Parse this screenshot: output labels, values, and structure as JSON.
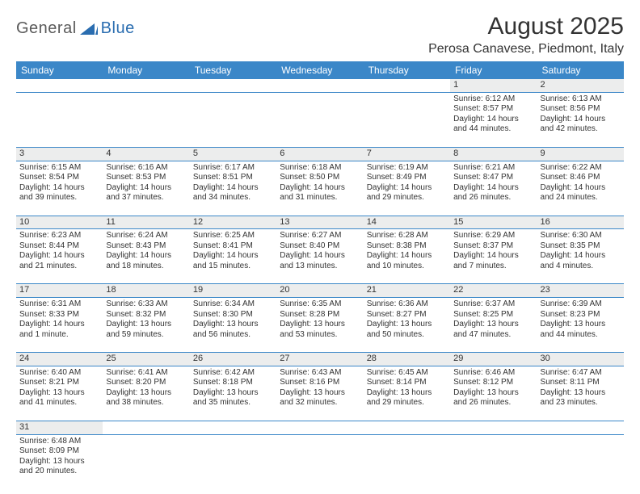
{
  "logo": {
    "general": "General",
    "blue": "Blue"
  },
  "title": "August 2025",
  "location": "Perosa Canavese, Piedmont, Italy",
  "colors": {
    "header_bg": "#3b87c8",
    "header_text": "#ffffff",
    "daynum_bg": "#eceded",
    "border": "#3b87c8",
    "text": "#333333"
  },
  "weekdays": [
    "Sunday",
    "Monday",
    "Tuesday",
    "Wednesday",
    "Thursday",
    "Friday",
    "Saturday"
  ],
  "weeks": [
    [
      null,
      null,
      null,
      null,
      null,
      {
        "n": "1",
        "sr": "Sunrise: 6:12 AM",
        "ss": "Sunset: 8:57 PM",
        "dl": "Daylight: 14 hours and 44 minutes."
      },
      {
        "n": "2",
        "sr": "Sunrise: 6:13 AM",
        "ss": "Sunset: 8:56 PM",
        "dl": "Daylight: 14 hours and 42 minutes."
      }
    ],
    [
      {
        "n": "3",
        "sr": "Sunrise: 6:15 AM",
        "ss": "Sunset: 8:54 PM",
        "dl": "Daylight: 14 hours and 39 minutes."
      },
      {
        "n": "4",
        "sr": "Sunrise: 6:16 AM",
        "ss": "Sunset: 8:53 PM",
        "dl": "Daylight: 14 hours and 37 minutes."
      },
      {
        "n": "5",
        "sr": "Sunrise: 6:17 AM",
        "ss": "Sunset: 8:51 PM",
        "dl": "Daylight: 14 hours and 34 minutes."
      },
      {
        "n": "6",
        "sr": "Sunrise: 6:18 AM",
        "ss": "Sunset: 8:50 PM",
        "dl": "Daylight: 14 hours and 31 minutes."
      },
      {
        "n": "7",
        "sr": "Sunrise: 6:19 AM",
        "ss": "Sunset: 8:49 PM",
        "dl": "Daylight: 14 hours and 29 minutes."
      },
      {
        "n": "8",
        "sr": "Sunrise: 6:21 AM",
        "ss": "Sunset: 8:47 PM",
        "dl": "Daylight: 14 hours and 26 minutes."
      },
      {
        "n": "9",
        "sr": "Sunrise: 6:22 AM",
        "ss": "Sunset: 8:46 PM",
        "dl": "Daylight: 14 hours and 24 minutes."
      }
    ],
    [
      {
        "n": "10",
        "sr": "Sunrise: 6:23 AM",
        "ss": "Sunset: 8:44 PM",
        "dl": "Daylight: 14 hours and 21 minutes."
      },
      {
        "n": "11",
        "sr": "Sunrise: 6:24 AM",
        "ss": "Sunset: 8:43 PM",
        "dl": "Daylight: 14 hours and 18 minutes."
      },
      {
        "n": "12",
        "sr": "Sunrise: 6:25 AM",
        "ss": "Sunset: 8:41 PM",
        "dl": "Daylight: 14 hours and 15 minutes."
      },
      {
        "n": "13",
        "sr": "Sunrise: 6:27 AM",
        "ss": "Sunset: 8:40 PM",
        "dl": "Daylight: 14 hours and 13 minutes."
      },
      {
        "n": "14",
        "sr": "Sunrise: 6:28 AM",
        "ss": "Sunset: 8:38 PM",
        "dl": "Daylight: 14 hours and 10 minutes."
      },
      {
        "n": "15",
        "sr": "Sunrise: 6:29 AM",
        "ss": "Sunset: 8:37 PM",
        "dl": "Daylight: 14 hours and 7 minutes."
      },
      {
        "n": "16",
        "sr": "Sunrise: 6:30 AM",
        "ss": "Sunset: 8:35 PM",
        "dl": "Daylight: 14 hours and 4 minutes."
      }
    ],
    [
      {
        "n": "17",
        "sr": "Sunrise: 6:31 AM",
        "ss": "Sunset: 8:33 PM",
        "dl": "Daylight: 14 hours and 1 minute."
      },
      {
        "n": "18",
        "sr": "Sunrise: 6:33 AM",
        "ss": "Sunset: 8:32 PM",
        "dl": "Daylight: 13 hours and 59 minutes."
      },
      {
        "n": "19",
        "sr": "Sunrise: 6:34 AM",
        "ss": "Sunset: 8:30 PM",
        "dl": "Daylight: 13 hours and 56 minutes."
      },
      {
        "n": "20",
        "sr": "Sunrise: 6:35 AM",
        "ss": "Sunset: 8:28 PM",
        "dl": "Daylight: 13 hours and 53 minutes."
      },
      {
        "n": "21",
        "sr": "Sunrise: 6:36 AM",
        "ss": "Sunset: 8:27 PM",
        "dl": "Daylight: 13 hours and 50 minutes."
      },
      {
        "n": "22",
        "sr": "Sunrise: 6:37 AM",
        "ss": "Sunset: 8:25 PM",
        "dl": "Daylight: 13 hours and 47 minutes."
      },
      {
        "n": "23",
        "sr": "Sunrise: 6:39 AM",
        "ss": "Sunset: 8:23 PM",
        "dl": "Daylight: 13 hours and 44 minutes."
      }
    ],
    [
      {
        "n": "24",
        "sr": "Sunrise: 6:40 AM",
        "ss": "Sunset: 8:21 PM",
        "dl": "Daylight: 13 hours and 41 minutes."
      },
      {
        "n": "25",
        "sr": "Sunrise: 6:41 AM",
        "ss": "Sunset: 8:20 PM",
        "dl": "Daylight: 13 hours and 38 minutes."
      },
      {
        "n": "26",
        "sr": "Sunrise: 6:42 AM",
        "ss": "Sunset: 8:18 PM",
        "dl": "Daylight: 13 hours and 35 minutes."
      },
      {
        "n": "27",
        "sr": "Sunrise: 6:43 AM",
        "ss": "Sunset: 8:16 PM",
        "dl": "Daylight: 13 hours and 32 minutes."
      },
      {
        "n": "28",
        "sr": "Sunrise: 6:45 AM",
        "ss": "Sunset: 8:14 PM",
        "dl": "Daylight: 13 hours and 29 minutes."
      },
      {
        "n": "29",
        "sr": "Sunrise: 6:46 AM",
        "ss": "Sunset: 8:12 PM",
        "dl": "Daylight: 13 hours and 26 minutes."
      },
      {
        "n": "30",
        "sr": "Sunrise: 6:47 AM",
        "ss": "Sunset: 8:11 PM",
        "dl": "Daylight: 13 hours and 23 minutes."
      }
    ],
    [
      {
        "n": "31",
        "sr": "Sunrise: 6:48 AM",
        "ss": "Sunset: 8:09 PM",
        "dl": "Daylight: 13 hours and 20 minutes."
      },
      null,
      null,
      null,
      null,
      null,
      null
    ]
  ]
}
